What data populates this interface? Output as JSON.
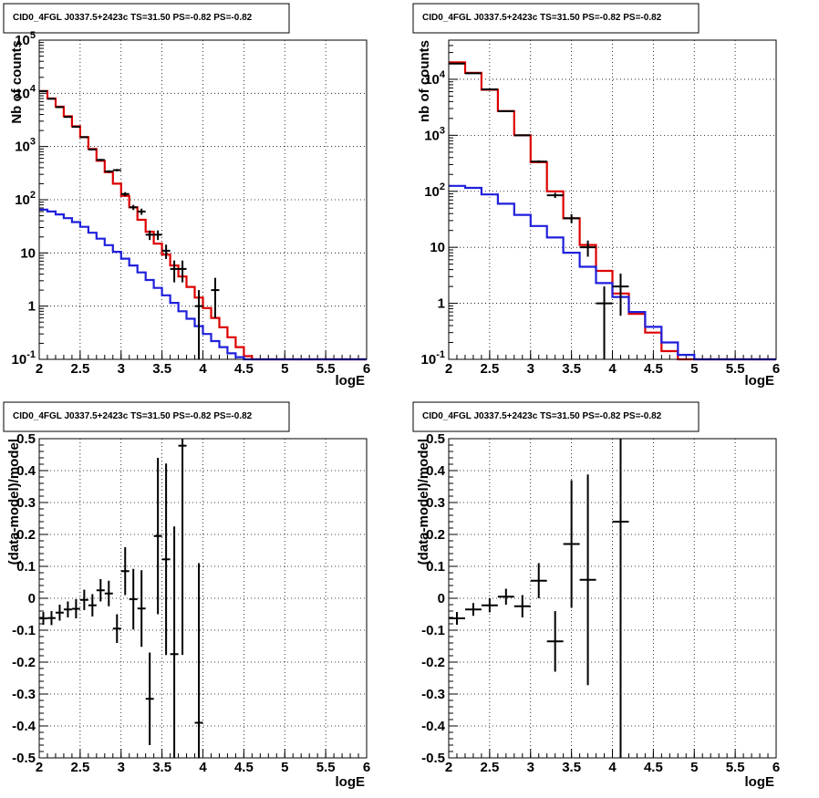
{
  "chart_data": [
    {
      "type": "line",
      "title": "CID0_4FGL J0337.5+2423c TS=31.50 PS=-0.82 PS=-0.82",
      "xlabel": "logE",
      "ylabel": "Nb of counts",
      "xlim": [
        2,
        6
      ],
      "ylim": [
        0.1,
        100000
      ],
      "yscale": "log",
      "grid": true,
      "x_ticks": [
        "2",
        "2.5",
        "3",
        "3.5",
        "4",
        "4.5",
        "5",
        "5.5",
        "6"
      ],
      "y_ticks": [
        "10^-1",
        "1",
        "10",
        "10^2",
        "10^3",
        "10^4",
        "10^5"
      ],
      "x_edges": [
        2.0,
        2.1,
        2.2,
        2.3,
        2.4,
        2.5,
        2.6,
        2.7,
        2.8,
        2.9,
        3.0,
        3.1,
        3.2,
        3.3,
        3.4,
        3.5,
        3.6,
        3.7,
        3.8,
        3.9,
        4.0,
        4.1,
        4.2,
        4.3,
        4.4,
        4.5,
        4.6,
        4.7,
        4.8,
        4.9,
        5.0,
        5.1,
        5.2,
        5.3,
        5.4,
        5.5,
        5.6,
        5.7,
        5.8,
        5.9,
        6.0
      ],
      "series": [
        {
          "color": "#dd0000",
          "style": "step",
          "values": [
            11000,
            8000,
            5600,
            3700,
            2400,
            1500,
            900,
            540,
            330,
            200,
            118,
            72,
            42,
            25,
            15,
            9.3,
            5.8,
            3.6,
            2.3,
            1.45,
            0.92,
            0.6,
            0.4,
            0.26,
            0.17,
            0.115,
            0.1,
            0.1,
            0.1,
            0.1,
            0.1,
            0.1,
            0.1,
            0.1,
            0.1,
            0.1,
            0.1,
            0.1,
            0.1,
            0.1
          ]
        },
        {
          "color": "#1f1fdd",
          "style": "step",
          "values": [
            65,
            60,
            53,
            45,
            38,
            31,
            24,
            18.5,
            14,
            10.5,
            7.8,
            5.8,
            4.3,
            3.1,
            2.2,
            1.6,
            1.15,
            0.8,
            0.58,
            0.42,
            0.3,
            0.22,
            0.17,
            0.13,
            0.11,
            0.1,
            0.1,
            0.1,
            0.1,
            0.1,
            0.1,
            0.1,
            0.1,
            0.1,
            0.1,
            0.1,
            0.1,
            0.1,
            0.1,
            0.1
          ]
        },
        {
          "color": "#000000",
          "style": "errorbar",
          "points": [
            {
              "x": 2.05,
              "y": 11000,
              "lo": 10900,
              "hi": 11100
            },
            {
              "x": 2.15,
              "y": 7900,
              "lo": 7820,
              "hi": 7990
            },
            {
              "x": 2.25,
              "y": 5500,
              "lo": 5430,
              "hi": 5580
            },
            {
              "x": 2.35,
              "y": 3600,
              "lo": 3540,
              "hi": 3660
            },
            {
              "x": 2.45,
              "y": 2350,
              "lo": 2300,
              "hi": 2400
            },
            {
              "x": 2.55,
              "y": 1500,
              "lo": 1460,
              "hi": 1540
            },
            {
              "x": 2.65,
              "y": 880,
              "lo": 850,
              "hi": 910
            },
            {
              "x": 2.75,
              "y": 560,
              "lo": 535,
              "hi": 585
            },
            {
              "x": 2.85,
              "y": 340,
              "lo": 322,
              "hi": 358
            },
            {
              "x": 2.95,
              "y": 360,
              "lo": 342,
              "hi": 378
            },
            {
              "x": 3.05,
              "y": 128,
              "lo": 117,
              "hi": 139
            },
            {
              "x": 3.15,
              "y": 72,
              "lo": 64,
              "hi": 80
            },
            {
              "x": 3.25,
              "y": 60,
              "lo": 52,
              "hi": 68
            },
            {
              "x": 3.35,
              "y": 22,
              "lo": 17.5,
              "hi": 26.5
            },
            {
              "x": 3.45,
              "y": 22,
              "lo": 17.5,
              "hi": 26.5
            },
            {
              "x": 3.55,
              "y": 11,
              "lo": 7.7,
              "hi": 14.3
            },
            {
              "x": 3.65,
              "y": 5,
              "lo": 2.8,
              "hi": 7.2
            },
            {
              "x": 3.75,
              "y": 5,
              "lo": 2.8,
              "hi": 7.2
            },
            {
              "x": 3.95,
              "y": 1,
              "lo": 0.1,
              "hi": 2
            },
            {
              "x": 4.15,
              "y": 2,
              "lo": 0.6,
              "hi": 3.4
            }
          ]
        }
      ]
    },
    {
      "type": "line",
      "title": "CID0_4FGL J0337.5+2423c TS=31.50 PS=-0.82 PS=-0.82",
      "xlabel": "logE",
      "ylabel": "nb of counts",
      "xlim": [
        2,
        6
      ],
      "ylim": [
        0.1,
        50000
      ],
      "yscale": "log",
      "grid": true,
      "x_ticks": [
        "2",
        "2.5",
        "3",
        "3.5",
        "4",
        "4.5",
        "5",
        "5.5",
        "6"
      ],
      "y_ticks": [
        "10^-1",
        "1",
        "10",
        "10^2",
        "10^3",
        "10^4"
      ],
      "x_edges": [
        2.0,
        2.2,
        2.4,
        2.6,
        2.8,
        3.0,
        3.2,
        3.4,
        3.6,
        3.8,
        4.0,
        4.2,
        4.4,
        4.6,
        4.8,
        5.0,
        5.2,
        5.4,
        5.6,
        5.8,
        6.0
      ],
      "series": [
        {
          "color": "#dd0000",
          "style": "step",
          "values": [
            20000,
            13000,
            6500,
            2700,
            1000,
            330,
            100,
            33,
            11,
            3.8,
            1.5,
            0.65,
            0.3,
            0.14,
            0.1,
            0.1,
            0.1,
            0.1,
            0.1,
            0.1
          ]
        },
        {
          "color": "#1f1fdd",
          "style": "step",
          "values": [
            125,
            115,
            88,
            60,
            38,
            24,
            15,
            8,
            4.5,
            2.3,
            1.3,
            0.7,
            0.38,
            0.2,
            0.12,
            0.1,
            0.1,
            0.1,
            0.1,
            0.1
          ]
        },
        {
          "color": "#000000",
          "style": "errorbar",
          "points": [
            {
              "x": 2.1,
              "y": 19000,
              "lo": 18860,
              "hi": 19140
            },
            {
              "x": 2.3,
              "y": 12800,
              "lo": 12690,
              "hi": 12910
            },
            {
              "x": 2.5,
              "y": 6600,
              "lo": 6520,
              "hi": 6680
            },
            {
              "x": 2.7,
              "y": 2700,
              "lo": 2650,
              "hi": 2750
            },
            {
              "x": 2.9,
              "y": 1000,
              "lo": 970,
              "hi": 1030
            },
            {
              "x": 3.1,
              "y": 340,
              "lo": 322,
              "hi": 358
            },
            {
              "x": 3.3,
              "y": 85,
              "lo": 76,
              "hi": 94
            },
            {
              "x": 3.5,
              "y": 33,
              "lo": 27,
              "hi": 39
            },
            {
              "x": 3.7,
              "y": 10,
              "lo": 6.8,
              "hi": 13.2
            },
            {
              "x": 3.9,
              "y": 1,
              "lo": 0.1,
              "hi": 2
            },
            {
              "x": 4.1,
              "y": 2,
              "lo": 0.6,
              "hi": 3.4
            }
          ]
        }
      ]
    },
    {
      "type": "scatter",
      "title": "CID0_4FGL J0337.5+2423c TS=31.50 PS=-0.82 PS=-0.82",
      "xlabel": "logE",
      "ylabel": "(data-model)/model",
      "xlim": [
        2,
        6
      ],
      "ylim": [
        -0.5,
        0.5
      ],
      "grid": true,
      "x_ticks": [
        "2",
        "2.5",
        "3",
        "3.5",
        "4",
        "4.5",
        "5",
        "5.5",
        "6"
      ],
      "y_ticks": [
        "-0.5",
        "-0.4",
        "-0.3",
        "-0.2",
        "-0.1",
        "0",
        "0.1",
        "0.2",
        "0.3",
        "0.4",
        "0.5"
      ],
      "xerr": 0.05,
      "points": [
        {
          "x": 2.05,
          "y": -0.063,
          "err": 0.02
        },
        {
          "x": 2.15,
          "y": -0.062,
          "err": 0.022
        },
        {
          "x": 2.25,
          "y": -0.045,
          "err": 0.025
        },
        {
          "x": 2.35,
          "y": -0.035,
          "err": 0.025
        },
        {
          "x": 2.45,
          "y": -0.033,
          "err": 0.03
        },
        {
          "x": 2.55,
          "y": -0.005,
          "err": 0.032
        },
        {
          "x": 2.65,
          "y": -0.022,
          "err": 0.035
        },
        {
          "x": 2.75,
          "y": 0.025,
          "err": 0.035
        },
        {
          "x": 2.85,
          "y": 0.015,
          "err": 0.04
        },
        {
          "x": 2.95,
          "y": -0.095,
          "err": 0.045
        },
        {
          "x": 3.05,
          "y": 0.085,
          "err": 0.075
        },
        {
          "x": 3.15,
          "y": -0.003,
          "err": 0.095
        },
        {
          "x": 3.25,
          "y": -0.032,
          "err": 0.12
        },
        {
          "x": 3.35,
          "y": -0.315,
          "err": 0.145
        },
        {
          "x": 3.45,
          "y": 0.195,
          "err": 0.245
        },
        {
          "x": 3.55,
          "y": 0.122,
          "err": 0.3
        },
        {
          "x": 3.65,
          "y": -0.175,
          "err": 0.4
        },
        {
          "x": 3.75,
          "y": 0.478,
          "err": 0.655
        },
        {
          "x": 3.95,
          "y": -0.39,
          "err": 0.5
        }
      ]
    },
    {
      "type": "scatter",
      "title": "CID0_4FGL J0337.5+2423c TS=31.50 PS=-0.82 PS=-0.82",
      "xlabel": "logE",
      "ylabel": "(data-model)/model",
      "xlim": [
        2,
        6
      ],
      "ylim": [
        -0.5,
        0.5
      ],
      "grid": true,
      "x_ticks": [
        "2",
        "2.5",
        "3",
        "3.5",
        "4",
        "4.5",
        "5",
        "5.5",
        "6"
      ],
      "y_ticks": [
        "-0.5",
        "-0.4",
        "-0.3",
        "-0.2",
        "-0.1",
        "0",
        "0.1",
        "0.2",
        "0.3",
        "0.4",
        "0.5"
      ],
      "xerr": 0.1,
      "points": [
        {
          "x": 2.1,
          "y": -0.063,
          "err": 0.02
        },
        {
          "x": 2.3,
          "y": -0.035,
          "err": 0.02
        },
        {
          "x": 2.5,
          "y": -0.022,
          "err": 0.022
        },
        {
          "x": 2.7,
          "y": 0.005,
          "err": 0.025
        },
        {
          "x": 2.9,
          "y": -0.025,
          "err": 0.035
        },
        {
          "x": 3.1,
          "y": 0.055,
          "err": 0.055
        },
        {
          "x": 3.3,
          "y": -0.135,
          "err": 0.095
        },
        {
          "x": 3.5,
          "y": 0.17,
          "err": 0.2
        },
        {
          "x": 3.7,
          "y": 0.058,
          "err": 0.33
        },
        {
          "x": 4.1,
          "y": 0.24,
          "err": 0.8
        }
      ]
    }
  ]
}
